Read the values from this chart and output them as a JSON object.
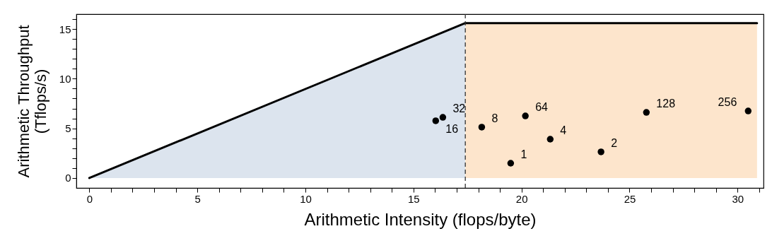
{
  "chart_data": {
    "type": "scatter",
    "xlabel": "Arithmetic Intensity (flops/byte)",
    "ylabel": "Arithmetic Throughput\n(Tflops/s)",
    "xlim": [
      -0.6,
      31.2
    ],
    "ylim": [
      -1,
      16.5
    ],
    "xticks": [
      0,
      {
        "value": 1,
        "label": null
      },
      {
        "value": 2,
        "label": null
      },
      {
        "value": 3,
        "label": null
      },
      {
        "value": 4,
        "label": null
      },
      5,
      {
        "value": 6,
        "label": null
      },
      {
        "value": 7,
        "label": null
      },
      {
        "value": 8,
        "label": null
      },
      {
        "value": 9,
        "label": null
      },
      10,
      {
        "value": 11,
        "label": null
      },
      {
        "value": 12,
        "label": null
      },
      {
        "value": 13,
        "label": null
      },
      {
        "value": 14,
        "label": null
      },
      15,
      {
        "value": 16,
        "label": null
      },
      {
        "value": 17,
        "label": null
      },
      {
        "value": 18,
        "label": null
      },
      {
        "value": 19,
        "label": null
      },
      20,
      {
        "value": 21,
        "label": null
      },
      {
        "value": 22,
        "label": null
      },
      {
        "value": 23,
        "label": null
      },
      {
        "value": 24,
        "label": null
      },
      25,
      {
        "value": 26,
        "label": null
      },
      {
        "value": 27,
        "label": null
      },
      {
        "value": 28,
        "label": null
      },
      {
        "value": 29,
        "label": null
      },
      30,
      {
        "value": 31,
        "label": null
      }
    ],
    "yticks": [
      0,
      {
        "value": 1,
        "label": null
      },
      {
        "value": 2,
        "label": null
      },
      {
        "value": 3,
        "label": null
      },
      {
        "value": 4,
        "label": null
      },
      5,
      {
        "value": 6,
        "label": null
      },
      {
        "value": 7,
        "label": null
      },
      {
        "value": 8,
        "label": null
      },
      {
        "value": 9,
        "label": null
      },
      10,
      {
        "value": 11,
        "label": null
      },
      {
        "value": 12,
        "label": null
      },
      {
        "value": 13,
        "label": null
      },
      {
        "value": 14,
        "label": null
      },
      15,
      {
        "value": 16,
        "label": null
      }
    ],
    "grid": false,
    "series": [
      {
        "type": "area",
        "color": "#dce4ee",
        "x": [
          0,
          17.4
        ],
        "values": [
          0,
          15.6
        ]
      },
      {
        "type": "area",
        "color": "#fde5cc",
        "x": [
          17.4,
          30.9
        ],
        "values": [
          15.6,
          15.6
        ]
      },
      {
        "type": "line",
        "color": "#000000",
        "x": [
          0,
          17.4,
          30.9
        ],
        "values": [
          0,
          15.6,
          15.6
        ]
      },
      {
        "type": "scatter",
        "color": "#000000",
        "marker": "circle",
        "x": [
          16.36,
          16.03,
          18.16,
          20.18,
          21.33,
          19.5,
          23.68,
          25.78,
          30.49
        ],
        "values": [
          6.11,
          5.76,
          5.12,
          6.25,
          3.91,
          1.49,
          2.63,
          6.61,
          6.75
        ]
      }
    ],
    "ref_lines": [
      {
        "axis": "x",
        "value": 17.4,
        "color": "#333333",
        "line_style": "dashed"
      }
    ],
    "annotations": [
      {
        "text": "32",
        "x": 16.36,
        "y": 6.11
      },
      {
        "text": "16",
        "x": 16.03,
        "y": 5.76
      },
      {
        "text": "8",
        "x": 18.16,
        "y": 5.12
      },
      {
        "text": "64",
        "x": 20.18,
        "y": 6.25
      },
      {
        "text": "4",
        "x": 21.33,
        "y": 3.91
      },
      {
        "text": "1",
        "x": 19.5,
        "y": 1.49
      },
      {
        "text": "2",
        "x": 23.68,
        "y": 2.63
      },
      {
        "text": "128",
        "x": 25.78,
        "y": 6.61
      },
      {
        "text": "256",
        "x": 30.49,
        "y": 6.75
      }
    ]
  }
}
